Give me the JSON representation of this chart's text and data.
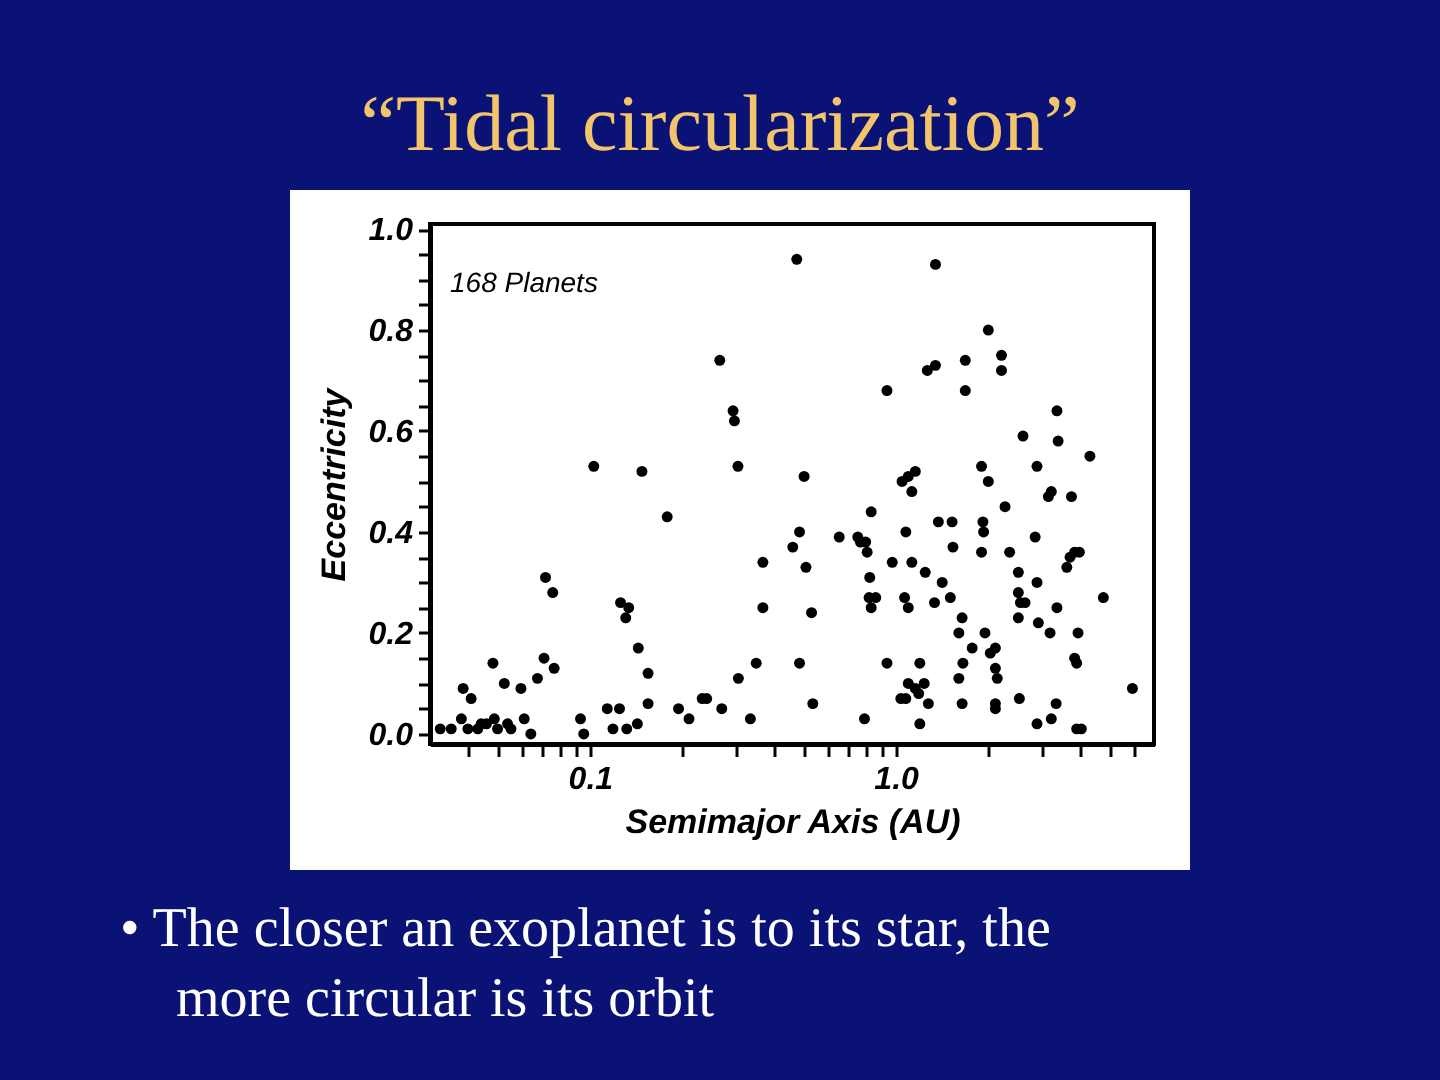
{
  "chart_data": {
    "type": "scatter",
    "title": "“Tidal circularization”",
    "xlabel": "Semimajor Axis (AU)",
    "ylabel": "Eccentricity",
    "annotations": [
      "168 Planets",
      "• The closer an exoplanet is to its star, the more circular is its orbit"
    ],
    "color": "#000000",
    "marker": "circle",
    "log": "x",
    "xlim": [
      0.03,
      7
    ],
    "xticks": [
      {
        "value": 0.04,
        "label": null
      },
      {
        "value": 0.05,
        "label": null
      },
      {
        "value": 0.06,
        "label": null
      },
      {
        "value": 0.07,
        "label": null
      },
      {
        "value": 0.08,
        "label": null
      },
      {
        "value": 0.09,
        "label": null
      },
      0.1,
      {
        "value": 0.2,
        "label": null
      },
      {
        "value": 0.3,
        "label": null
      },
      {
        "value": 0.4,
        "label": null
      },
      {
        "value": 0.5,
        "label": null
      },
      {
        "value": 0.6,
        "label": null
      },
      {
        "value": 0.7,
        "label": null
      },
      {
        "value": 0.8,
        "label": null
      },
      {
        "value": 0.9,
        "label": null
      },
      {
        "value": 1,
        "label": "1.0"
      },
      {
        "value": 2,
        "label": null
      },
      {
        "value": 3,
        "label": null
      },
      {
        "value": 4,
        "label": null
      },
      {
        "value": 5,
        "label": null
      },
      {
        "value": 6,
        "label": null
      }
    ],
    "ylim": [
      -0.02,
      1.01
    ],
    "yticks": [
      {
        "value": 0,
        "label": "0.0"
      },
      {
        "value": 0.05,
        "label": null
      },
      {
        "value": 0.1,
        "label": null
      },
      {
        "value": 0.15,
        "label": null
      },
      0.2,
      {
        "value": 0.25,
        "label": null
      },
      {
        "value": 0.3,
        "label": null
      },
      {
        "value": 0.35,
        "label": null
      },
      0.4,
      {
        "value": 0.45,
        "label": null
      },
      {
        "value": 0.5,
        "label": null
      },
      {
        "value": 0.55,
        "label": null
      },
      0.6,
      {
        "value": 0.65,
        "label": null
      },
      {
        "value": 0.7,
        "label": null
      },
      {
        "value": 0.75,
        "label": null
      },
      0.8,
      {
        "value": 0.85,
        "label": null
      },
      {
        "value": 0.9,
        "label": null
      },
      {
        "value": 0.95,
        "label": null
      },
      {
        "value": 1,
        "label": "1.0"
      }
    ],
    "x": [
      0.0324,
      0.0352,
      0.038,
      0.0385,
      0.0409,
      0.0399,
      0.043,
      0.0441,
      0.0459,
      0.0482,
      0.0487,
      0.0499,
      0.0525,
      0.0538,
      0.0552,
      0.0595,
      0.061,
      0.0641,
      0.0674,
      0.0708,
      0.0764,
      0.0716,
      0.0756,
      0.0932,
      0.0955,
      0.103,
      0.114,
      0.119,
      0.125,
      0.132,
      0.143,
      0.144,
      0.155,
      0.155,
      0.126,
      0.134,
      0.131,
      0.148,
      0.179,
      0.195,
      0.211,
      0.233,
      0.241,
      0.266,
      0.27,
      0.294,
      0.297,
      0.305,
      0.306,
      0.335,
      0.35,
      0.368,
      0.368,
      0.461,
      0.475,
      0.485,
      0.485,
      0.502,
      0.509,
      0.531,
      0.536,
      0.654,
      0.752,
      0.767,
      0.798,
      0.807,
      0.791,
      0.823,
      0.832,
      0.819,
      0.832,
      0.861,
      0.937,
      0.937,
      0.975,
      1.04,
      1.08,
      1.1,
      1.05,
      1.1,
      1.08,
      1.07,
      1.1,
      1.13,
      1.16,
      1.13,
      1.16,
      1.19,
      1.2,
      1.2,
      1.24,
      1.25,
      1.27,
      1.35,
      1.35,
      1.28,
      1.34,
      1.38,
      1.42,
      1.53,
      1.54,
      1.51,
      1.65,
      1.61,
      1.61,
      1.66,
      1.65,
      1.69,
      1.69,
      1.78,
      1.91,
      1.93,
      1.94,
      1.91,
      1.96,
      2.01,
      2.01,
      2.04,
      2.12,
      2.12,
      2.15,
      2.12,
      2.12,
      2.22,
      2.22,
      2.28,
      2.36,
      2.52,
      2.52,
      2.56,
      2.65,
      2.52,
      2.54,
      2.61,
      2.86,
      2.9,
      2.9,
      2.93,
      2.9,
      3.16,
      3.23,
      3.2,
      3.23,
      3.35,
      3.37,
      3.4,
      3.37,
      3.63,
      3.72,
      3.85,
      3.99,
      3.76,
      3.85,
      3.91,
      3.95,
      3.91,
      4.05,
      4.32,
      4.78,
      5.95
    ],
    "values": [
      0.01,
      0.01,
      0.03,
      0.09,
      0.07,
      0.01,
      0.01,
      0.02,
      0.02,
      0.14,
      0.03,
      0.01,
      0.1,
      0.02,
      0.01,
      0.09,
      0.03,
      0.0,
      0.11,
      0.15,
      0.13,
      0.31,
      0.28,
      0.03,
      0.0,
      0.53,
      0.05,
      0.01,
      0.05,
      0.01,
      0.02,
      0.17,
      0.12,
      0.06,
      0.26,
      0.25,
      0.23,
      0.52,
      0.43,
      0.05,
      0.03,
      0.07,
      0.07,
      0.74,
      0.05,
      0.64,
      0.62,
      0.53,
      0.11,
      0.03,
      0.14,
      0.34,
      0.25,
      0.37,
      0.94,
      0.4,
      0.14,
      0.51,
      0.33,
      0.24,
      0.06,
      0.39,
      0.39,
      0.38,
      0.38,
      0.36,
      0.03,
      0.31,
      0.44,
      0.27,
      0.25,
      0.27,
      0.68,
      0.14,
      0.34,
      0.07,
      0.07,
      0.1,
      0.5,
      0.51,
      0.4,
      0.27,
      0.25,
      0.48,
      0.52,
      0.34,
      0.09,
      0.08,
      0.14,
      0.02,
      0.1,
      0.32,
      0.72,
      0.73,
      0.93,
      0.06,
      0.26,
      0.42,
      0.3,
      0.42,
      0.37,
      0.27,
      0.23,
      0.2,
      0.11,
      0.14,
      0.06,
      0.74,
      0.68,
      0.17,
      0.53,
      0.42,
      0.4,
      0.36,
      0.2,
      0.8,
      0.5,
      0.16,
      0.17,
      0.13,
      0.11,
      0.06,
      0.05,
      0.75,
      0.72,
      0.45,
      0.36,
      0.32,
      0.28,
      0.26,
      0.26,
      0.23,
      0.07,
      0.59,
      0.39,
      0.53,
      0.3,
      0.22,
      0.02,
      0.47,
      0.48,
      0.2,
      0.03,
      0.06,
      0.64,
      0.58,
      0.25,
      0.33,
      0.35,
      0.36,
      0.36,
      0.47,
      0.15,
      0.14,
      0.2,
      0.01,
      0.01,
      0.55,
      0.27,
      0.09
    ]
  }
}
